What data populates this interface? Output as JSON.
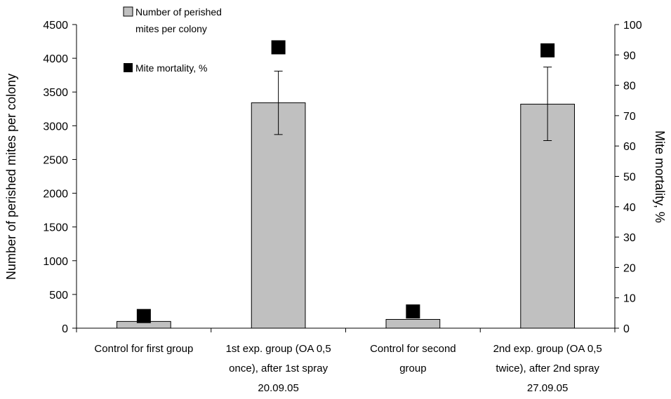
{
  "chart_data": {
    "type": "bar",
    "categories": [
      [
        "Control for first group"
      ],
      [
        "1st exp. group (OA 0,5",
        "once), after 1st spray",
        "20.09.05"
      ],
      [
        "Control for second",
        "group"
      ],
      [
        "2nd exp. group (OA 0,5",
        "twice), after 2nd spray",
        "27.09.05"
      ]
    ],
    "series": [
      {
        "name": "Number of perished mites per colony",
        "legend_lines": [
          "Number of perished",
          "mites per colony"
        ],
        "type": "bar",
        "axis": "left",
        "values": [
          100,
          3340,
          130,
          3320
        ],
        "error": [
          [
            100,
            100
          ],
          [
            2870,
            3810
          ],
          [
            130,
            130
          ],
          [
            2780,
            3870
          ]
        ],
        "color": "#c0c0c0"
      },
      {
        "name": "Mite mortality, %",
        "legend_lines": [
          "Mite mortality, %"
        ],
        "type": "scatter",
        "axis": "right",
        "marker": "square",
        "values": [
          4,
          92.5,
          5.5,
          91.5
        ],
        "color": "#000000"
      }
    ],
    "y_left": {
      "label": "Number of perished mites per colony",
      "lim": [
        0,
        4500
      ],
      "ticks": [
        "0",
        "500",
        "1000",
        "1500",
        "2000",
        "2500",
        "3000",
        "3500",
        "4000",
        "4500"
      ]
    },
    "y_right": {
      "label": "Mite mortality, %",
      "lim": [
        0,
        100
      ],
      "ticks": [
        "0",
        "10",
        "20",
        "30",
        "40",
        "50",
        "60",
        "70",
        "80",
        "90",
        "100"
      ]
    },
    "grid": false,
    "legend_position": "top-left inside plot"
  }
}
